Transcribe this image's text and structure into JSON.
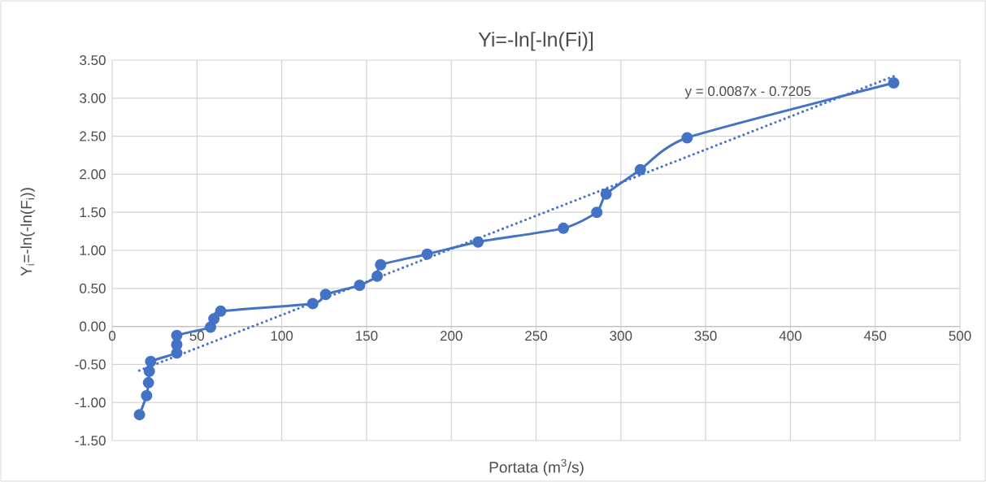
{
  "chart_data": {
    "type": "line",
    "title": "Yi=-ln[-ln(Fi)]",
    "xlabel": "Portata (m$^{3}$/s)",
    "ylabel": "Y$_{i}$=-ln(-ln(F$_{i}$))",
    "series": [
      {
        "color": "#4472c4",
        "x": [
          16.1,
          20.3,
          21.4,
          21.9,
          22.7,
          38.1,
          38.1,
          38.1,
          58.0,
          60.0,
          64.0,
          118.3,
          125.9,
          145.9,
          156.3,
          158.3,
          185.8,
          215.8,
          266.1,
          285.8,
          291.3,
          311.5,
          339.1,
          460.9
        ],
        "values": [
          -1.16,
          -0.91,
          -0.74,
          -0.59,
          -0.46,
          -0.35,
          -0.24,
          -0.12,
          -0.01,
          0.1,
          0.2,
          0.3,
          0.42,
          0.54,
          0.66,
          0.81,
          0.95,
          1.11,
          1.29,
          1.5,
          1.74,
          2.06,
          2.48,
          3.2
        ]
      },
      {
        "color": "#4472c4",
        "x": [
          16,
          461
        ],
        "values": [
          -0.58,
          3.29
        ],
        "marker": "none",
        "line_style": "dotted"
      }
    ],
    "annotations": [
      "y = 0.0087x - 0.7205"
    ],
    "xlim": [
      0,
      500
    ],
    "ylim": [
      -1.5,
      3.5
    ],
    "xticks": [
      0,
      50,
      100,
      150,
      200,
      250,
      300,
      350,
      400,
      450,
      500
    ],
    "yticks": [
      {
        "value": -1.5,
        "label": "-1.50"
      },
      {
        "value": -1.0,
        "label": "-1.00"
      },
      {
        "value": -0.5,
        "label": "-0.50"
      },
      {
        "value": 0,
        "label": "0.00"
      },
      {
        "value": 0.5,
        "label": "0.50"
      },
      {
        "value": 1.0,
        "label": "1.00"
      },
      {
        "value": 1.5,
        "label": "1.50"
      },
      {
        "value": 2.0,
        "label": "2.00"
      },
      {
        "value": 2.5,
        "label": "2.50"
      },
      {
        "value": 3.0,
        "label": "3.00"
      },
      {
        "value": 3.5,
        "label": "3.50"
      }
    ],
    "grid": true,
    "marker": "circle",
    "line_style": "solid"
  }
}
